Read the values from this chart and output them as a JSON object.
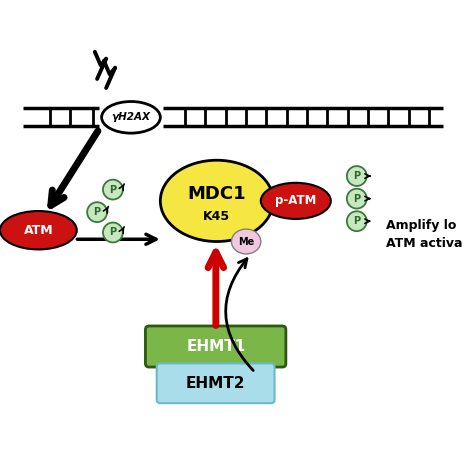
{
  "bg_color": "#ffffff",
  "dna_color": "#000000",
  "mdc1_color": "#f5e642",
  "atm_color": "#cc1111",
  "patm_color": "#cc1111",
  "ehmt1_color": "#7ab648",
  "ehmt2_color": "#a8dde9",
  "p_circle_color": "#c8e6c0",
  "me_color": "#f0c8e0",
  "h2ax_color": "#ffffff",
  "lightning_color": "#000000",
  "arrow_red": "#cc0000",
  "arrow_black": "#000000",
  "title": "MDC1",
  "subtitle": "K45",
  "me_label": "Me",
  "ehmt1_label": "EHMT1",
  "ehmt2_label": "EHMT2",
  "atm_label": "ATM",
  "patm_label": "p-ATM",
  "h2ax_label": "γH2AX",
  "amplify_label": "Amplify lo",
  "atm_act_label": "ATM activa"
}
